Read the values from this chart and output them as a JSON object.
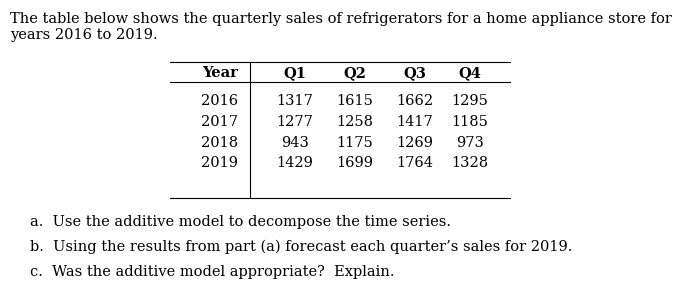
{
  "intro_text_line1": "The table below shows the quarterly sales of refrigerators for a home appliance store for",
  "intro_text_line2": "years 2016 to 2019.",
  "table_headers": [
    "Year",
    "Q1",
    "Q2",
    "Q3",
    "Q4"
  ],
  "table_data": [
    [
      "2016",
      "1317",
      "1615",
      "1662",
      "1295"
    ],
    [
      "2017",
      "1277",
      "1258",
      "1417",
      "1185"
    ],
    [
      "2018",
      "943",
      "1175",
      "1269",
      "973"
    ],
    [
      "2019",
      "1429",
      "1699",
      "1764",
      "1328"
    ]
  ],
  "questions": [
    "a.  Use the additive model to decompose the time series.",
    "b.  Using the results from part (a) forecast each quarter’s sales for 2019.",
    "c.  Was the additive model appropriate?  Explain."
  ],
  "bg_color": "#ffffff",
  "text_color": "#000000",
  "font_size": 10.5,
  "table_font_size": 10.5,
  "question_font_size": 10.5
}
